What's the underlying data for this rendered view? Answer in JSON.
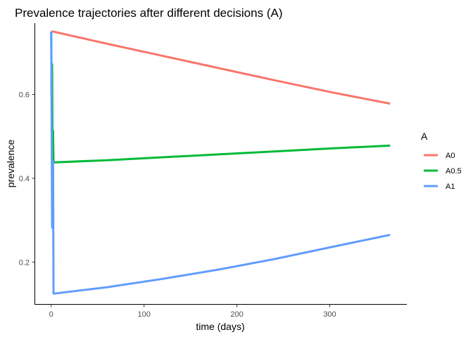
{
  "chart_data": {
    "type": "line",
    "title": "Prevalence trajectories after different decisions (A)",
    "xlabel": "time (days)",
    "ylabel": "prevalence",
    "xlim": [
      -18,
      383
    ],
    "ylim": [
      0.1,
      0.77
    ],
    "xticks": [
      0,
      100,
      200,
      300
    ],
    "xtick_labels": [
      "0",
      "100",
      "200",
      "300"
    ],
    "yticks": [
      0.2,
      0.4,
      0.6
    ],
    "ytick_labels": [
      "0.2",
      "0.4",
      "0.6"
    ],
    "grid": false,
    "legend": {
      "title": "A",
      "position": "right"
    },
    "series": [
      {
        "name": "A0",
        "color": "#F8766D",
        "x": [
          0,
          2,
          60,
          120,
          180,
          240,
          300,
          365
        ],
        "y": [
          0.75,
          0.75,
          0.721,
          0.692,
          0.663,
          0.634,
          0.606,
          0.578
        ]
      },
      {
        "name": "A0.5",
        "color": "#00BA38",
        "x": [
          0,
          0.5,
          1,
          1.5,
          2,
          2.5,
          3,
          4,
          60,
          120,
          180,
          240,
          300,
          365
        ],
        "y": [
          0.75,
          0.595,
          0.672,
          0.438,
          0.513,
          0.438,
          0.438,
          0.438,
          0.443,
          0.45,
          0.457,
          0.464,
          0.471,
          0.478
        ]
      },
      {
        "name": "A1",
        "color": "#619CFF",
        "x": [
          0,
          1,
          1.5,
          2,
          2.5,
          3,
          4,
          60,
          120,
          180,
          240,
          300,
          365
        ],
        "y": [
          0.75,
          0.282,
          0.282,
          0.44,
          0.125,
          0.125,
          0.125,
          0.14,
          0.16,
          0.182,
          0.207,
          0.235,
          0.265
        ]
      }
    ]
  }
}
